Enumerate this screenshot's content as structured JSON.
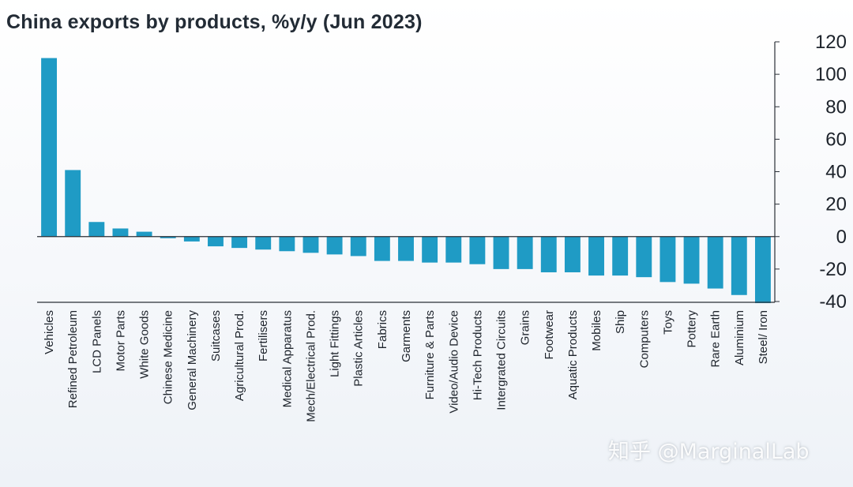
{
  "chart_data": {
    "type": "bar",
    "title": "China exports by products, %y/y (Jun 2023)",
    "xlabel": "",
    "ylabel": "",
    "ylim": [
      -40,
      120
    ],
    "yticks": [
      120,
      100,
      80,
      60,
      40,
      20,
      0,
      -20,
      -40
    ],
    "y_axis_position": "right",
    "bar_color": "#1f9bc5",
    "categories": [
      "Vehicles",
      "Refined Petroleum",
      "LCD Panels",
      "Motor Parts",
      "White Goods",
      "Chinese Medicine",
      "General Machinery",
      "Suitcases",
      "Agricultural Prod.",
      "Fertilisers",
      "Medical Apparatus",
      "Mech/Electrical Prod.",
      "Light Fittings",
      "Plastic Articles",
      "Fabrics",
      "Garments",
      "Furniture & Parts",
      "Video/Audio Device",
      "Hi-Tech Products",
      "Intergrated Circuits",
      "Grains",
      "Footwear",
      "Aquatic Products",
      "Mobiles",
      "Ship",
      "Computers",
      "Toys",
      "Pottery",
      "Rare Earth",
      "Aluminium",
      "Steel/ Iron"
    ],
    "values": [
      110,
      41,
      9,
      5,
      3,
      -1,
      -3,
      -6,
      -7,
      -8,
      -9,
      -10,
      -11,
      -12,
      -15,
      -15,
      -16,
      -16,
      -17,
      -20,
      -20,
      -22,
      -22,
      -24,
      -24,
      -25,
      -28,
      -29,
      -32,
      -36,
      -41
    ]
  },
  "watermark": "知乎 @MarginalLab"
}
